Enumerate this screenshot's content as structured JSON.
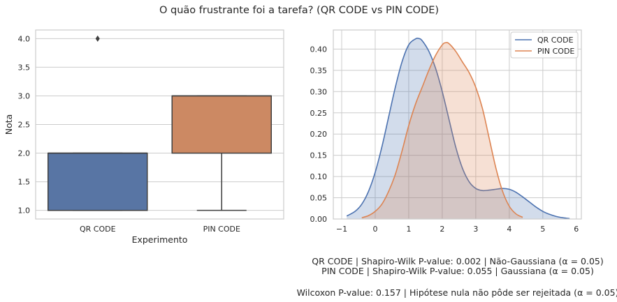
{
  "title": "O quão frustrante foi a tarefa? (QR CODE vs PIN CODE)",
  "chart_data": [
    {
      "type": "box",
      "xlabel": "Experimento",
      "ylabel": "Nota",
      "ylim": [
        0.85,
        4.15
      ],
      "yticks": [
        "1.0",
        "1.5",
        "2.0",
        "2.5",
        "3.0",
        "3.5",
        "4.0"
      ],
      "grid": true,
      "categories": [
        "QR CODE",
        "PIN CODE"
      ],
      "boxes": [
        {
          "name": "QR CODE",
          "color": "#5875a4",
          "whisker_low": 1.0,
          "q1": 1.0,
          "median": 2.0,
          "q3": 2.0,
          "whisker_high": 2.0,
          "outliers": [
            4.0
          ]
        },
        {
          "name": "PIN CODE",
          "color": "#cc8963",
          "whisker_low": 1.0,
          "q1": 2.0,
          "median": 3.0,
          "q3": 3.0,
          "whisker_high": 3.0,
          "outliers": []
        }
      ]
    },
    {
      "type": "area",
      "xlim": [
        -1.25,
        6.15
      ],
      "ylim": [
        0,
        0.445
      ],
      "xticks": [
        "−1",
        "0",
        "1",
        "2",
        "3",
        "4",
        "5",
        "6"
      ],
      "yticks": [
        "0.00",
        "0.05",
        "0.10",
        "0.15",
        "0.20",
        "0.25",
        "0.30",
        "0.35",
        "0.40"
      ],
      "grid": true,
      "legend_position": "top-right",
      "series": [
        {
          "name": "QR CODE",
          "color": "#4c72b0",
          "x": [
            -0.85,
            -0.6,
            -0.4,
            -0.2,
            0,
            0.2,
            0.4,
            0.6,
            0.8,
            1.0,
            1.2,
            1.3,
            1.4,
            1.6,
            1.8,
            2.0,
            2.2,
            2.4,
            2.6,
            2.8,
            3.0,
            3.2,
            3.4,
            3.6,
            3.8,
            4.0,
            4.2,
            4.4,
            4.6,
            4.8,
            5.0,
            5.2,
            5.4,
            5.6,
            5.8
          ],
          "y": [
            0.007,
            0.018,
            0.035,
            0.065,
            0.11,
            0.17,
            0.24,
            0.31,
            0.37,
            0.41,
            0.424,
            0.425,
            0.42,
            0.395,
            0.355,
            0.3,
            0.235,
            0.17,
            0.12,
            0.088,
            0.072,
            0.067,
            0.068,
            0.07,
            0.072,
            0.07,
            0.063,
            0.052,
            0.04,
            0.028,
            0.018,
            0.011,
            0.006,
            0.003,
            0.001
          ]
        },
        {
          "name": "PIN CODE",
          "color": "#dd8452",
          "x": [
            -0.4,
            -0.2,
            0,
            0.2,
            0.4,
            0.6,
            0.8,
            1.0,
            1.2,
            1.4,
            1.6,
            1.8,
            2.0,
            2.1,
            2.2,
            2.4,
            2.6,
            2.8,
            3.0,
            3.2,
            3.4,
            3.6,
            3.8,
            4.0,
            4.2,
            4.4
          ],
          "y": [
            0.003,
            0.008,
            0.018,
            0.035,
            0.065,
            0.105,
            0.16,
            0.22,
            0.27,
            0.31,
            0.35,
            0.385,
            0.41,
            0.415,
            0.413,
            0.395,
            0.37,
            0.345,
            0.31,
            0.26,
            0.19,
            0.12,
            0.065,
            0.03,
            0.012,
            0.004
          ]
        }
      ]
    }
  ],
  "stats": {
    "line1": "QR CODE | Shapiro-Wilk P-value: 0.002 | Não-Gaussiana (α = 0.05)",
    "line2": "PIN CODE | Shapiro-Wilk P-value: 0.055 | Gaussiana (α = 0.05)",
    "line3": "Wilcoxon P-value: 0.157 | Hipótese nula não pôde ser rejeitada (α = 0.05)"
  }
}
